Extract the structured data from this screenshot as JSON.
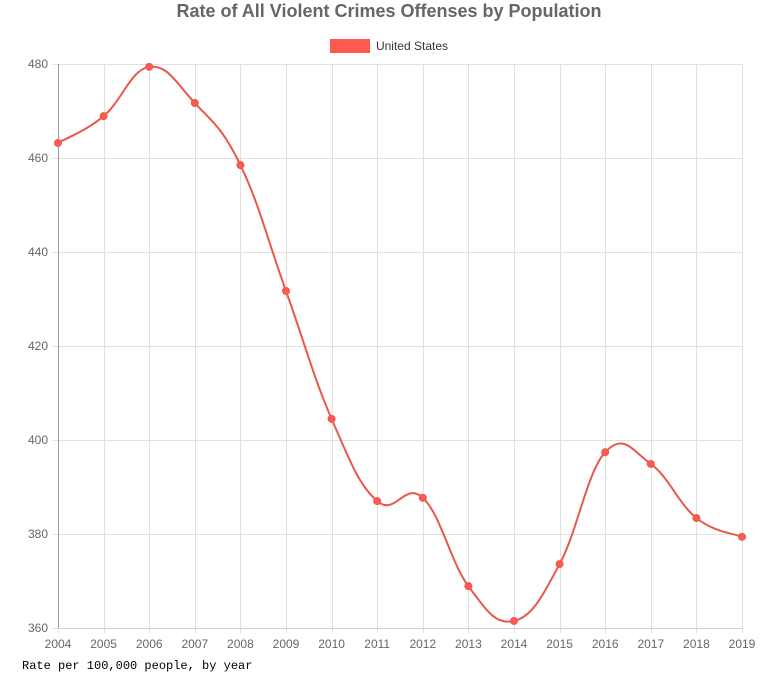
{
  "chart_data": {
    "type": "line",
    "title": "Rate of All Violent Crimes Offenses by Population",
    "xlabel": "",
    "ylabel": "",
    "caption": "Rate per 100,000 people, by year",
    "categories": [
      "2004",
      "2005",
      "2006",
      "2007",
      "2008",
      "2009",
      "2010",
      "2011",
      "2012",
      "2013",
      "2014",
      "2015",
      "2016",
      "2017",
      "2018",
      "2019"
    ],
    "series": [
      {
        "name": "United States",
        "color": "#ff6384",
        "line_color": "#e8584d",
        "swatch_color": "#ff5a4f",
        "values": [
          463.2,
          468.9,
          479.4,
          471.7,
          458.5,
          431.7,
          404.5,
          387.0,
          387.7,
          368.9,
          361.5,
          373.6,
          397.4,
          394.9,
          383.4,
          379.4
        ]
      }
    ],
    "ylim": [
      360,
      480
    ],
    "yticks": [
      "480",
      "460",
      "440",
      "420",
      "400",
      "380",
      "360"
    ],
    "ytick_values": [
      480,
      460,
      440,
      420,
      400,
      380,
      360
    ],
    "grid": true,
    "legend_position": "top-center"
  }
}
